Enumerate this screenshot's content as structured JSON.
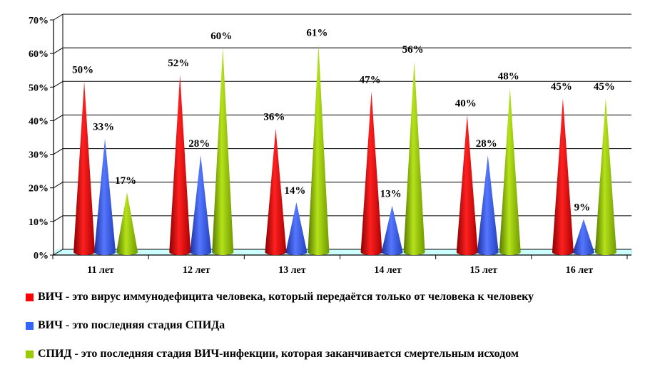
{
  "chart_data": {
    "type": "bar",
    "style": "3d-cone",
    "categories": [
      "11 лет",
      "12 лет",
      "13 лет",
      "14 лет",
      "15 лет",
      "16 лет"
    ],
    "series": [
      {
        "name": "ВИЧ - это вирус иммунодефицита человека, который передаётся только от человека к человеку",
        "color": "#ff0000",
        "values": [
          50,
          52,
          36,
          47,
          40,
          45
        ]
      },
      {
        "name": "ВИЧ - это последняя стадия СПИДа",
        "color": "#3366ff",
        "values": [
          33,
          28,
          14,
          13,
          28,
          9
        ]
      },
      {
        "name": "СПИД - это последняя стадия ВИЧ-инфекции, которая заканчивается смертельным исходом",
        "color": "#99cc00",
        "values": [
          17,
          60,
          61,
          56,
          48,
          45
        ]
      }
    ],
    "yticks": [
      "0%",
      "10%",
      "20%",
      "30%",
      "40%",
      "50%",
      "60%",
      "70%"
    ],
    "ylim": [
      0,
      70
    ],
    "value_suffix": "%",
    "grid": true,
    "floor_color": "#ccffff",
    "legend_position": "bottom"
  }
}
